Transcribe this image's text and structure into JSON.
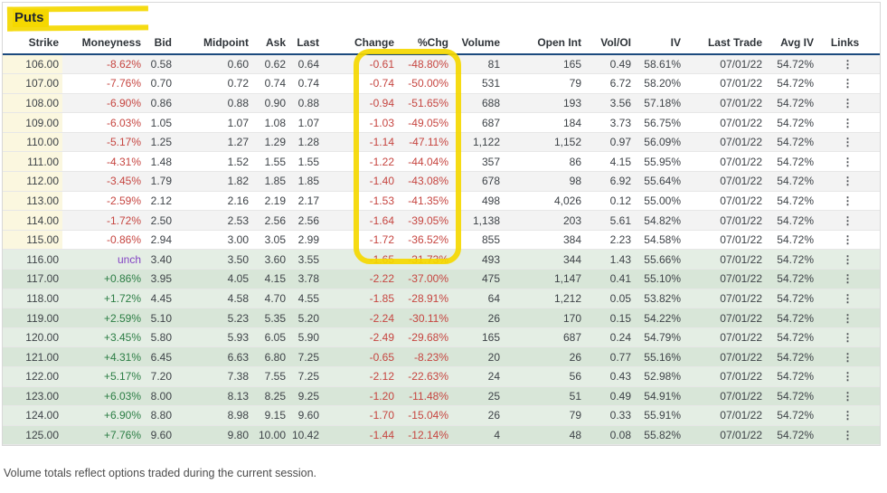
{
  "title": "Puts",
  "footer_note": "Volume totals reflect options traded during the current session.",
  "links_icon": "⋮",
  "colors": {
    "negative": "#c64540",
    "positive": "#2b7d44",
    "unchanged": "#8444c4",
    "strike_bg": "#fbf7df",
    "otm_alt_bg": "#f3f3f3",
    "itm_bg_light": "#e4eee4",
    "itm_bg_dark": "#d8e6d8",
    "header_border": "#1c4a7e",
    "annotation_yellow": "#f5d800",
    "text": "#3e4348",
    "header_text": "#2f3439"
  },
  "columns": [
    {
      "key": "strike",
      "label": "Strike"
    },
    {
      "key": "moneyness",
      "label": "Moneyness"
    },
    {
      "key": "bid",
      "label": "Bid"
    },
    {
      "key": "mid",
      "label": "Midpoint"
    },
    {
      "key": "ask",
      "label": "Ask"
    },
    {
      "key": "last",
      "label": "Last"
    },
    {
      "key": "chg",
      "label": "Change"
    },
    {
      "key": "pct",
      "label": "%Chg"
    },
    {
      "key": "vol",
      "label": "Volume"
    },
    {
      "key": "oi",
      "label": "Open Int"
    },
    {
      "key": "voloi",
      "label": "Vol/OI"
    },
    {
      "key": "iv",
      "label": "IV"
    },
    {
      "key": "trade",
      "label": "Last Trade"
    },
    {
      "key": "avgiv",
      "label": "Avg IV"
    },
    {
      "key": "links",
      "label": "Links"
    }
  ],
  "rows": [
    {
      "strike": "106.00",
      "moneyness": "-8.62%",
      "tone": "neg",
      "bid": "0.58",
      "mid": "0.60",
      "ask": "0.62",
      "last": "0.64",
      "chg": "-0.61",
      "pct": "-48.80%",
      "vol": "81",
      "oi": "165",
      "voloi": "0.49",
      "iv": "58.61%",
      "trade": "07/01/22",
      "avgiv": "54.72%"
    },
    {
      "strike": "107.00",
      "moneyness": "-7.76%",
      "tone": "neg",
      "bid": "0.70",
      "mid": "0.72",
      "ask": "0.74",
      "last": "0.74",
      "chg": "-0.74",
      "pct": "-50.00%",
      "vol": "531",
      "oi": "79",
      "voloi": "6.72",
      "iv": "58.20%",
      "trade": "07/01/22",
      "avgiv": "54.72%"
    },
    {
      "strike": "108.00",
      "moneyness": "-6.90%",
      "tone": "neg",
      "bid": "0.86",
      "mid": "0.88",
      "ask": "0.90",
      "last": "0.88",
      "chg": "-0.94",
      "pct": "-51.65%",
      "vol": "688",
      "oi": "193",
      "voloi": "3.56",
      "iv": "57.18%",
      "trade": "07/01/22",
      "avgiv": "54.72%"
    },
    {
      "strike": "109.00",
      "moneyness": "-6.03%",
      "tone": "neg",
      "bid": "1.05",
      "mid": "1.07",
      "ask": "1.08",
      "last": "1.07",
      "chg": "-1.03",
      "pct": "-49.05%",
      "vol": "687",
      "oi": "184",
      "voloi": "3.73",
      "iv": "56.75%",
      "trade": "07/01/22",
      "avgiv": "54.72%"
    },
    {
      "strike": "110.00",
      "moneyness": "-5.17%",
      "tone": "neg",
      "bid": "1.25",
      "mid": "1.27",
      "ask": "1.29",
      "last": "1.28",
      "chg": "-1.14",
      "pct": "-47.11%",
      "vol": "1,122",
      "oi": "1,152",
      "voloi": "0.97",
      "iv": "56.09%",
      "trade": "07/01/22",
      "avgiv": "54.72%"
    },
    {
      "strike": "111.00",
      "moneyness": "-4.31%",
      "tone": "neg",
      "bid": "1.48",
      "mid": "1.52",
      "ask": "1.55",
      "last": "1.55",
      "chg": "-1.22",
      "pct": "-44.04%",
      "vol": "357",
      "oi": "86",
      "voloi": "4.15",
      "iv": "55.95%",
      "trade": "07/01/22",
      "avgiv": "54.72%"
    },
    {
      "strike": "112.00",
      "moneyness": "-3.45%",
      "tone": "neg",
      "bid": "1.79",
      "mid": "1.82",
      "ask": "1.85",
      "last": "1.85",
      "chg": "-1.40",
      "pct": "-43.08%",
      "vol": "678",
      "oi": "98",
      "voloi": "6.92",
      "iv": "55.64%",
      "trade": "07/01/22",
      "avgiv": "54.72%"
    },
    {
      "strike": "113.00",
      "moneyness": "-2.59%",
      "tone": "neg",
      "bid": "2.12",
      "mid": "2.16",
      "ask": "2.19",
      "last": "2.17",
      "chg": "-1.53",
      "pct": "-41.35%",
      "vol": "498",
      "oi": "4,026",
      "voloi": "0.12",
      "iv": "55.00%",
      "trade": "07/01/22",
      "avgiv": "54.72%"
    },
    {
      "strike": "114.00",
      "moneyness": "-1.72%",
      "tone": "neg",
      "bid": "2.50",
      "mid": "2.53",
      "ask": "2.56",
      "last": "2.56",
      "chg": "-1.64",
      "pct": "-39.05%",
      "vol": "1,138",
      "oi": "203",
      "voloi": "5.61",
      "iv": "54.82%",
      "trade": "07/01/22",
      "avgiv": "54.72%"
    },
    {
      "strike": "115.00",
      "moneyness": "-0.86%",
      "tone": "neg",
      "bid": "2.94",
      "mid": "3.00",
      "ask": "3.05",
      "last": "2.99",
      "chg": "-1.72",
      "pct": "-36.52%",
      "vol": "855",
      "oi": "384",
      "voloi": "2.23",
      "iv": "54.58%",
      "trade": "07/01/22",
      "avgiv": "54.72%"
    },
    {
      "strike": "116.00",
      "moneyness": "unch",
      "tone": "unch",
      "bid": "3.40",
      "mid": "3.50",
      "ask": "3.60",
      "last": "3.55",
      "chg": "-1.65",
      "pct": "-31.73%",
      "vol": "493",
      "oi": "344",
      "voloi": "1.43",
      "iv": "55.66%",
      "trade": "07/01/22",
      "avgiv": "54.72%"
    },
    {
      "strike": "117.00",
      "moneyness": "+0.86%",
      "tone": "pos",
      "bid": "3.95",
      "mid": "4.05",
      "ask": "4.15",
      "last": "3.78",
      "chg": "-2.22",
      "pct": "-37.00%",
      "vol": "475",
      "oi": "1,147",
      "voloi": "0.41",
      "iv": "55.10%",
      "trade": "07/01/22",
      "avgiv": "54.72%"
    },
    {
      "strike": "118.00",
      "moneyness": "+1.72%",
      "tone": "pos",
      "bid": "4.45",
      "mid": "4.58",
      "ask": "4.70",
      "last": "4.55",
      "chg": "-1.85",
      "pct": "-28.91%",
      "vol": "64",
      "oi": "1,212",
      "voloi": "0.05",
      "iv": "53.82%",
      "trade": "07/01/22",
      "avgiv": "54.72%"
    },
    {
      "strike": "119.00",
      "moneyness": "+2.59%",
      "tone": "pos",
      "bid": "5.10",
      "mid": "5.23",
      "ask": "5.35",
      "last": "5.20",
      "chg": "-2.24",
      "pct": "-30.11%",
      "vol": "26",
      "oi": "170",
      "voloi": "0.15",
      "iv": "54.22%",
      "trade": "07/01/22",
      "avgiv": "54.72%"
    },
    {
      "strike": "120.00",
      "moneyness": "+3.45%",
      "tone": "pos",
      "bid": "5.80",
      "mid": "5.93",
      "ask": "6.05",
      "last": "5.90",
      "chg": "-2.49",
      "pct": "-29.68%",
      "vol": "165",
      "oi": "687",
      "voloi": "0.24",
      "iv": "54.79%",
      "trade": "07/01/22",
      "avgiv": "54.72%"
    },
    {
      "strike": "121.00",
      "moneyness": "+4.31%",
      "tone": "pos",
      "bid": "6.45",
      "mid": "6.63",
      "ask": "6.80",
      "last": "7.25",
      "chg": "-0.65",
      "pct": "-8.23%",
      "vol": "20",
      "oi": "26",
      "voloi": "0.77",
      "iv": "55.16%",
      "trade": "07/01/22",
      "avgiv": "54.72%"
    },
    {
      "strike": "122.00",
      "moneyness": "+5.17%",
      "tone": "pos",
      "bid": "7.20",
      "mid": "7.38",
      "ask": "7.55",
      "last": "7.25",
      "chg": "-2.12",
      "pct": "-22.63%",
      "vol": "24",
      "oi": "56",
      "voloi": "0.43",
      "iv": "52.98%",
      "trade": "07/01/22",
      "avgiv": "54.72%"
    },
    {
      "strike": "123.00",
      "moneyness": "+6.03%",
      "tone": "pos",
      "bid": "8.00",
      "mid": "8.13",
      "ask": "8.25",
      "last": "9.25",
      "chg": "-1.20",
      "pct": "-11.48%",
      "vol": "25",
      "oi": "51",
      "voloi": "0.49",
      "iv": "54.91%",
      "trade": "07/01/22",
      "avgiv": "54.72%"
    },
    {
      "strike": "124.00",
      "moneyness": "+6.90%",
      "tone": "pos",
      "bid": "8.80",
      "mid": "8.98",
      "ask": "9.15",
      "last": "9.60",
      "chg": "-1.70",
      "pct": "-15.04%",
      "vol": "26",
      "oi": "79",
      "voloi": "0.33",
      "iv": "55.91%",
      "trade": "07/01/22",
      "avgiv": "54.72%"
    },
    {
      "strike": "125.00",
      "moneyness": "+7.76%",
      "tone": "pos",
      "bid": "9.60",
      "mid": "9.80",
      "ask": "10.00",
      "last": "10.42",
      "chg": "-1.44",
      "pct": "-12.14%",
      "vol": "4",
      "oi": "48",
      "voloi": "0.08",
      "iv": "55.82%",
      "trade": "07/01/22",
      "avgiv": "54.72%"
    }
  ]
}
